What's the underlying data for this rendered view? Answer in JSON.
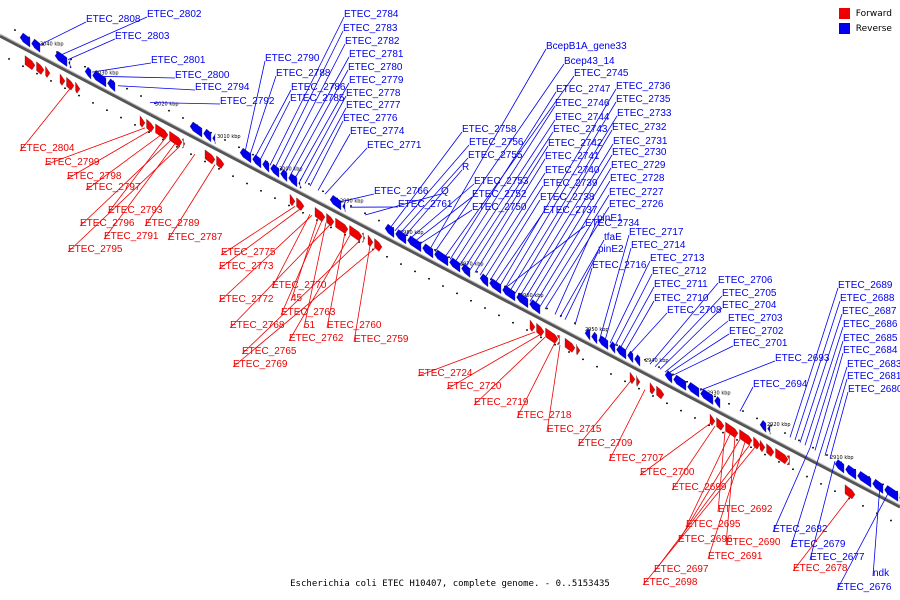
{
  "legend": {
    "forward": {
      "label": "Forward",
      "color": "#ee0000"
    },
    "reverse": {
      "label": "Reverse",
      "color": "#0000ee"
    }
  },
  "caption": "Escherichia coli ETEC H10407, complete genome. - 0..5153435",
  "ticks": [
    "3040 kbp",
    "3030 kbp",
    "3020 kbp",
    "3010 kbp",
    "3000 kbp",
    "2990 kbp",
    "2980 kbp",
    "2970 kbp",
    "2960 kbp",
    "2950 kbp",
    "2940 kbp",
    "2930 kbp",
    "2920 kbp",
    "2910 kbp"
  ],
  "reverse_labels": [
    "ETEC_2808",
    "ETEC_2802",
    "ETEC_2803",
    "ETEC_2801",
    "ETEC_2800",
    "ETEC_2794",
    "ETEC_2792",
    "ETEC_2790",
    "ETEC_2788",
    "ETEC_2786",
    "ETEC_2785",
    "ETEC_2784",
    "ETEC_2783",
    "ETEC_2782",
    "ETEC_2781",
    "ETEC_2780",
    "ETEC_2779",
    "ETEC_2778",
    "ETEC_2777",
    "ETEC_2776",
    "ETEC_2774",
    "ETEC_2771",
    "ETEC_2766",
    "ETEC_2761",
    "Q",
    "ETEC_2758",
    "ETEC_2756",
    "ETEC_2755",
    "R",
    "ETEC_2753",
    "ETEC_2752",
    "ETEC_2750",
    "BcepB1A_gene33",
    "Bcep43_14",
    "ETEC_2745",
    "ETEC_2747",
    "ETEC_2746",
    "ETEC_2744",
    "ETEC_2743",
    "ETEC_2742",
    "ETEC_2741",
    "ETEC_2740",
    "ETEC_2739",
    "ETEC_2738",
    "ETEC_2737",
    "ETEC_2734",
    "ETEC_2736",
    "ETEC_2735",
    "ETEC_2733",
    "ETEC_2732",
    "ETEC_2731",
    "ETEC_2730",
    "ETEC_2729",
    "ETEC_2728",
    "ETEC_2727",
    "ETEC_2726",
    "pinE1",
    "tfaE",
    "pinE2",
    "ETEC_2716",
    "ETEC_2717",
    "ETEC_2714",
    "ETEC_2713",
    "ETEC_2712",
    "ETEC_2711",
    "ETEC_2710",
    "ETEC_2708",
    "ETEC_2706",
    "ETEC_2705",
    "ETEC_2704",
    "ETEC_2703",
    "ETEC_2702",
    "ETEC_2701",
    "ETEC_2693",
    "ETEC_2694",
    "ETEC_2689",
    "ETEC_2688",
    "ETEC_2687",
    "ETEC_2686",
    "ETEC_2685",
    "ETEC_2684",
    "ETEC_2683",
    "ETEC_2681",
    "ETEC_2680",
    "ETEC_2682",
    "ETEC_2679",
    "ETEC_2677",
    "ndk",
    "ETEC_2676"
  ],
  "forward_labels": [
    "ETEC_2804",
    "ETEC_2799",
    "ETEC_2798",
    "ETEC_2797",
    "ETEC_2793",
    "ETEC_2796",
    "ETEC_2791",
    "ETEC_2795",
    "ETEC_2789",
    "ETEC_2787",
    "ETEC_2775",
    "ETEC_2773",
    "ETEC_2770",
    "ETEC_2772",
    "45",
    "ETEC_2763",
    "51",
    "ETEC_2768",
    "ETEC_2760",
    "ETEC_2762",
    "ETEC_2765",
    "ETEC_2759",
    "ETEC_2769",
    "ETEC_2724",
    "ETEC_2720",
    "ETEC_2719",
    "ETEC_2718",
    "ETEC_2715",
    "ETEC_2709",
    "ETEC_2707",
    "ETEC_2700",
    "ETEC_2699",
    "ETEC_2692",
    "ETEC_2695",
    "ETEC_2690",
    "ETEC_2696",
    "ETEC_2691",
    "ETEC_2697",
    "ETEC_2698",
    "ETEC_2678"
  ]
}
